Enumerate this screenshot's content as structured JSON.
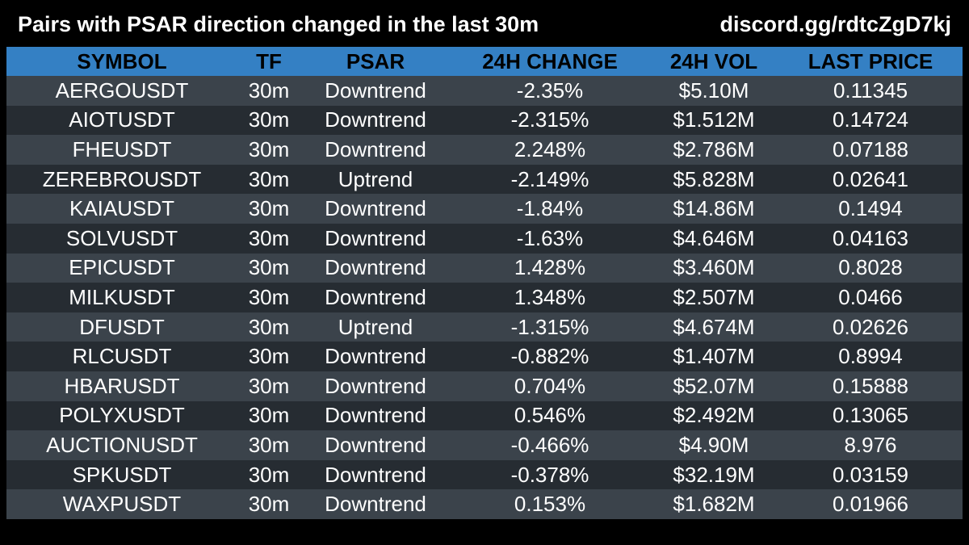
{
  "header": {
    "title": "Pairs with PSAR direction changed in the last 30m",
    "discord": "discord.gg/rdtcZgD7kj"
  },
  "table": {
    "columns": [
      "SYMBOL",
      "TF",
      "PSAR",
      "24H CHANGE",
      "24H VOL",
      "LAST PRICE"
    ],
    "rows": [
      [
        "AERGOUSDT",
        "30m",
        "Downtrend",
        "-2.35%",
        "$5.10M",
        "0.11345"
      ],
      [
        "AIOTUSDT",
        "30m",
        "Downtrend",
        "-2.315%",
        "$1.512M",
        "0.14724"
      ],
      [
        "FHEUSDT",
        "30m",
        "Downtrend",
        "2.248%",
        "$2.786M",
        "0.07188"
      ],
      [
        "ZEREBROUSDT",
        "30m",
        "Uptrend",
        "-2.149%",
        "$5.828M",
        "0.02641"
      ],
      [
        "KAIAUSDT",
        "30m",
        "Downtrend",
        "-1.84%",
        "$14.86M",
        "0.1494"
      ],
      [
        "SOLVUSDT",
        "30m",
        "Downtrend",
        "-1.63%",
        "$4.646M",
        "0.04163"
      ],
      [
        "EPICUSDT",
        "30m",
        "Downtrend",
        "1.428%",
        "$3.460M",
        "0.8028"
      ],
      [
        "MILKUSDT",
        "30m",
        "Downtrend",
        "1.348%",
        "$2.507M",
        "0.0466"
      ],
      [
        "DFUSDT",
        "30m",
        "Uptrend",
        "-1.315%",
        "$4.674M",
        "0.02626"
      ],
      [
        "RLCUSDT",
        "30m",
        "Downtrend",
        "-0.882%",
        "$1.407M",
        "0.8994"
      ],
      [
        "HBARUSDT",
        "30m",
        "Downtrend",
        "0.704%",
        "$52.07M",
        "0.15888"
      ],
      [
        "POLYXUSDT",
        "30m",
        "Downtrend",
        "0.546%",
        "$2.492M",
        "0.13065"
      ],
      [
        "AUCTIONUSDT",
        "30m",
        "Downtrend",
        "-0.466%",
        "$4.90M",
        "8.976"
      ],
      [
        "SPKUSDT",
        "30m",
        "Downtrend",
        "-0.378%",
        "$32.19M",
        "0.03159"
      ],
      [
        "WAXPUSDT",
        "30m",
        "Downtrend",
        "0.153%",
        "$1.682M",
        "0.01966"
      ]
    ]
  },
  "colors": {
    "background": "#000000",
    "header_row": "#3480c4",
    "row_light": "#3b434b",
    "row_dark": "#262c32",
    "text": "#ffffff",
    "header_text": "#000000"
  }
}
